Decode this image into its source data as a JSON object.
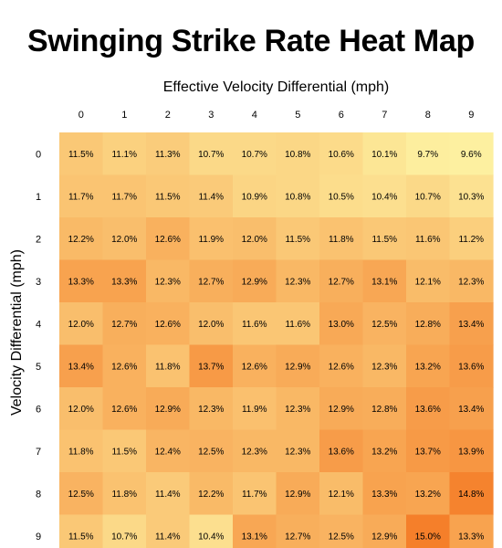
{
  "chart_data": {
    "type": "heatmap",
    "title": "Swinging Strike Rate Heat Map",
    "xlabel": "Effective Velocity Differential (mph)",
    "ylabel": "Velocity Differential (mph)",
    "x_categories": [
      "0",
      "1",
      "2",
      "3",
      "4",
      "5",
      "6",
      "7",
      "8",
      "9"
    ],
    "y_categories": [
      "0",
      "1",
      "2",
      "3",
      "4",
      "5",
      "6",
      "7",
      "8",
      "9"
    ],
    "value_unit": "%",
    "color_scale": {
      "low": "#fdf0a0",
      "high": "#f57f2a",
      "min": 9.6,
      "max": 15.0
    },
    "values": [
      [
        11.5,
        11.1,
        11.3,
        10.7,
        10.7,
        10.8,
        10.6,
        10.1,
        9.7,
        9.6
      ],
      [
        11.7,
        11.7,
        11.5,
        11.4,
        10.9,
        10.8,
        10.5,
        10.4,
        10.7,
        10.3
      ],
      [
        12.2,
        12.0,
        12.6,
        11.9,
        12.0,
        11.5,
        11.8,
        11.5,
        11.6,
        11.2
      ],
      [
        13.3,
        13.3,
        12.3,
        12.7,
        12.9,
        12.3,
        12.7,
        13.1,
        12.1,
        12.3
      ],
      [
        12.0,
        12.7,
        12.6,
        12.0,
        11.6,
        11.6,
        13.0,
        12.5,
        12.8,
        13.4
      ],
      [
        13.4,
        12.6,
        11.8,
        13.7,
        12.6,
        12.9,
        12.6,
        12.3,
        13.2,
        13.6
      ],
      [
        12.0,
        12.6,
        12.9,
        12.3,
        11.9,
        12.3,
        12.9,
        12.8,
        13.6,
        13.4
      ],
      [
        11.8,
        11.5,
        12.4,
        12.5,
        12.3,
        12.3,
        13.6,
        13.2,
        13.7,
        13.9
      ],
      [
        12.5,
        11.8,
        11.4,
        12.2,
        11.7,
        12.9,
        12.1,
        13.3,
        13.2,
        14.8
      ],
      [
        11.5,
        10.7,
        11.4,
        10.4,
        13.1,
        12.7,
        12.5,
        12.9,
        15.0,
        13.3
      ]
    ]
  }
}
